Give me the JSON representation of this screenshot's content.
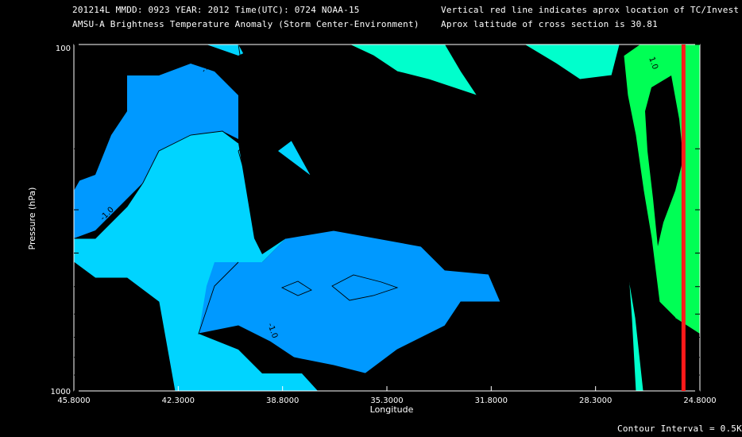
{
  "header": {
    "line1": "201214L  MMDD: 0923 YEAR: 2012 Time(UTC): 0724 NOAA-15",
    "line2": "AMSU-A Brightness Temperature Anomaly (Storm Center-Environment)",
    "note1": "Vertical red line indicates aprox location of TC/Invest",
    "note2": "Aprox latitude of cross section is 30.81"
  },
  "footer": {
    "contour_interval": "Contour Interval = 0.5K"
  },
  "colors": {
    "level_-3": "#0055ff",
    "level_-2.5": "#0077ff",
    "level_-2": "#0099ff",
    "level_-1.5": "#00bbff",
    "level_-1": "#00d4ff",
    "level_-0.5": "#00eeff",
    "level_0": "#00ffcc",
    "level_0.5": "#00ff88",
    "level_1": "#00ff55",
    "level_1.5": "#22ff22",
    "storm_line": "#ff1a1a"
  },
  "chart_data": {
    "type": "contour",
    "xlabel": "Longitude",
    "ylabel": "Pressure (hPa)",
    "xlim": [
      45.8,
      24.8
    ],
    "ylim": [
      1000,
      100
    ],
    "y_scale": "log",
    "x_ticks": [
      "45.8000",
      "42.3000",
      "38.8000",
      "35.3000",
      "31.8000",
      "28.3000",
      "24.8000"
    ],
    "y_ticks": [
      "100",
      "1000"
    ],
    "contour_labels": [
      "-1.0",
      "0.0",
      "-1.0",
      "-1.0",
      "0.0",
      "1.0",
      "-1.0",
      "1.0"
    ],
    "storm_longitude": 25.35,
    "contour_interval": 0.5,
    "anomaly_grid": {
      "longitude": [
        45.8,
        42.3,
        38.8,
        35.3,
        31.8,
        28.3,
        26.5,
        25.5
      ],
      "pressure_hPa": [
        100,
        200,
        300,
        500,
        700,
        850,
        1000
      ],
      "values": [
        [
          -2.0,
          -1.5,
          -1.0,
          -0.5,
          -0.5,
          0.0,
          0.5,
          1.0
        ],
        [
          -2.5,
          -1.5,
          -1.5,
          -1.0,
          -0.5,
          0.0,
          0.5,
          1.0
        ],
        [
          -1.5,
          -1.0,
          -1.5,
          -1.0,
          -0.5,
          0.0,
          0.5,
          1.0
        ],
        [
          -1.5,
          -1.5,
          -2.0,
          -1.5,
          -1.0,
          -0.5,
          0.0,
          0.5
        ],
        [
          -1.0,
          -1.5,
          -2.0,
          -2.0,
          -1.5,
          -0.5,
          0.0,
          0.5
        ],
        [
          -1.0,
          -1.0,
          -1.5,
          -1.5,
          -1.0,
          -0.5,
          0.0,
          0.5
        ],
        [
          -0.5,
          -1.0,
          -1.0,
          -0.5,
          -0.5,
          -0.5,
          0.0,
          0.5
        ]
      ]
    }
  }
}
